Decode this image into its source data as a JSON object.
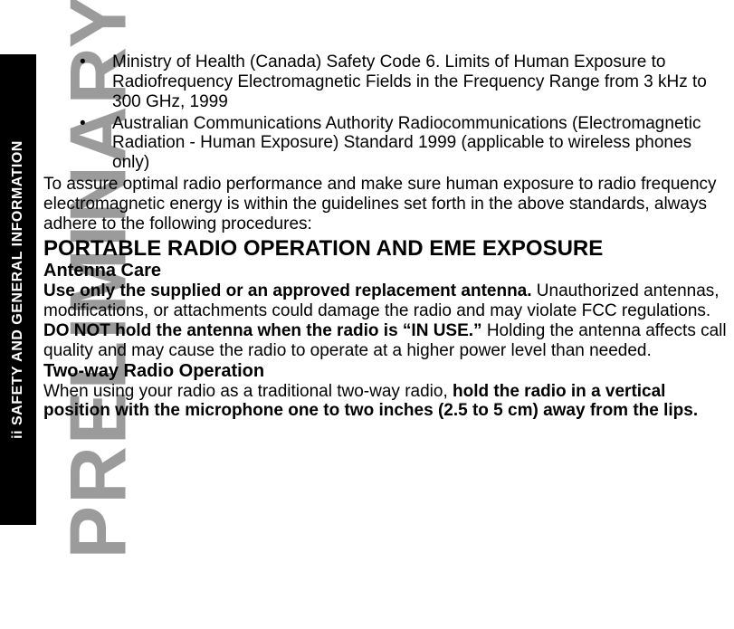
{
  "sidebar": {
    "page_roman": "ii",
    "label": "SAFETY AND GENERAL INFORMATION"
  },
  "watermark": "PRELIMINARY",
  "body": {
    "bullets": [
      "Ministry of Health (Canada) Safety Code 6. Limits of Human Exposure to Radiofrequency Electromagnetic Fields in the Frequency Range from 3 kHz to 300 GHz, 1999",
      "Australian Communications Authority Radiocommunications (Electromagnetic Radiation - Human Exposure) Standard 1999 (applicable to wireless phones only)"
    ],
    "intro": "To assure optimal radio performance and make sure human exposure to radio frequency electromagnetic energy is within the guidelines set forth in the above standards, always adhere to the following procedures:",
    "h1": "PORTABLE RADIO OPERATION AND EME EXPOSURE",
    "h2a": "Antenna Care",
    "antenna_bold": "Use only the supplied or an approved replacement antenna.  ",
    "antenna_rest": "Unauthorized antennas, modifications, or attachments could damage the radio and may violate FCC regulations.",
    "donot_bold": "DO NOT hold the antenna when the radio is “IN USE.” ",
    "donot_rest": "Holding the antenna affects call quality and may cause the radio to operate at a higher power level than needed.",
    "h2b": "Two-way Radio Operation",
    "twoway_lead": "When using your radio as a traditional two-way radio, ",
    "twoway_bold": "hold the radio in a vertical position with the microphone one to two inches (2.5 to 5 cm) away from the lips."
  },
  "style": {
    "bg": "#ffffff",
    "text": "#000000",
    "watermark_color": "#9b9b9b",
    "sidebar_bg": "#000000",
    "sidebar_text": "#ffffff",
    "body_fontsize": 19,
    "h1_fontsize": 24,
    "h2_fontsize": 20,
    "watermark_fontsize": 88
  }
}
